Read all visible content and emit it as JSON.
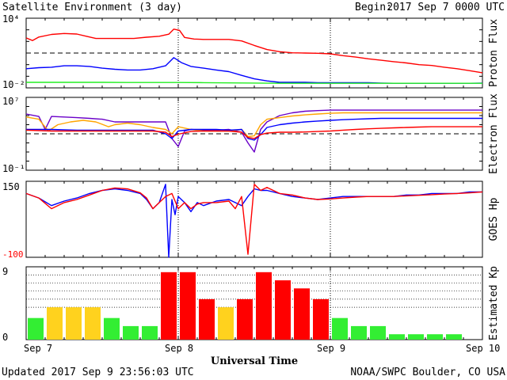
{
  "header": {
    "title": "Satellite Environment (3 day)",
    "begin_label": "Begin:",
    "begin_value": "2017 Sep 7 0000 UTC"
  },
  "footer": {
    "updated": "Updated 2017 Sep  9 23:56:03 UTC",
    "credit": "NOAA/SWPC Boulder, CO USA"
  },
  "colors": {
    "red": "#ff0000",
    "blue": "#0000ff",
    "green": "#22ee22",
    "orange": "#ffa500",
    "purple": "#6a00c8",
    "kp_green": "#33ee33",
    "kp_yellow": "#ffd21e",
    "kp_red": "#ff0000"
  },
  "chart_data": [
    {
      "type": "line",
      "ylabel": "Proton Flux",
      "ytick_labels": [
        "10⁴",
        "10⁻²"
      ],
      "yscale": "log",
      "ylim": [
        0.01,
        10000
      ],
      "threshold": 10,
      "xlim": [
        0,
        72
      ],
      "series": [
        {
          "color": "red",
          "x": [
            0,
            1,
            2,
            4,
            6,
            8,
            9.5,
            11,
            13,
            15,
            17,
            19,
            21,
            22.5,
            23.3,
            24.2,
            25,
            26.5,
            28,
            30,
            32,
            34,
            36,
            38,
            40,
            42,
            44,
            46,
            48,
            50,
            52,
            54,
            56,
            58,
            60,
            62,
            64,
            66,
            68,
            70,
            72
          ],
          "y": [
            200,
            120,
            240,
            400,
            480,
            430,
            280,
            180,
            180,
            180,
            180,
            230,
            280,
            420,
            1150,
            900,
            220,
            160,
            150,
            150,
            150,
            110,
            45,
            20,
            13,
            10.5,
            10,
            9.5,
            8.5,
            6,
            4.5,
            3.2,
            2.4,
            1.8,
            1.4,
            1,
            0.85,
            0.6,
            0.45,
            0.3,
            0.2
          ]
        },
        {
          "color": "blue",
          "x": [
            0,
            2,
            4,
            6,
            8,
            10,
            12,
            14,
            16,
            18,
            20,
            22,
            23.3,
            24.5,
            26,
            28,
            30,
            32,
            34,
            36,
            38,
            40,
            42,
            44,
            46,
            48,
            50,
            52,
            54,
            56,
            58,
            60,
            62,
            64,
            66,
            68,
            70,
            72
          ],
          "y": [
            0.45,
            0.55,
            0.6,
            0.8,
            0.8,
            0.7,
            0.5,
            0.4,
            0.35,
            0.35,
            0.45,
            0.8,
            4,
            1.5,
            0.7,
            0.5,
            0.35,
            0.25,
            0.12,
            0.06,
            0.04,
            0.03,
            0.03,
            0.03,
            0.028,
            0.028,
            0.028,
            0.028,
            0.028,
            0.026,
            0.025,
            0.025,
            0.025,
            0.025,
            0.025,
            0.025,
            0.025,
            0.026
          ]
        },
        {
          "color": "green",
          "x": [
            0,
            4,
            8,
            12,
            16,
            20,
            24,
            28,
            32,
            36,
            40,
            44,
            48,
            52,
            56,
            60,
            64,
            68,
            72
          ],
          "y": [
            0.03,
            0.03,
            0.03,
            0.03,
            0.029,
            0.029,
            0.029,
            0.028,
            0.027,
            0.026,
            0.025,
            0.025,
            0.025,
            0.025,
            0.025,
            0.025,
            0.025,
            0.025,
            0.025
          ]
        }
      ]
    },
    {
      "type": "line",
      "ylabel": "Electron Flux",
      "ytick_labels": [
        "10⁷",
        "10⁻¹"
      ],
      "yscale": "log",
      "ylim": [
        0.1,
        10000000
      ],
      "threshold": 1000,
      "xlim": [
        0,
        72
      ],
      "series": [
        {
          "color": "purple",
          "x": [
            0,
            2,
            3,
            4,
            6,
            8,
            10,
            12,
            14,
            16,
            18,
            20,
            22,
            23,
            24,
            25,
            26,
            28,
            30,
            32,
            34,
            35,
            36,
            37,
            38,
            40,
            42,
            44,
            46,
            48,
            50,
            52,
            54,
            56,
            58,
            60,
            62,
            64,
            66,
            68,
            70,
            72
          ],
          "y": [
            150000,
            80000,
            3000,
            80000,
            70000,
            60000,
            50000,
            40000,
            20000,
            20000,
            20000,
            20000,
            20000,
            300,
            40,
            2000,
            3000,
            2500,
            2500,
            3000,
            1500,
            100,
            10,
            3000,
            20000,
            100000,
            200000,
            300000,
            350000,
            400000,
            400000,
            400000,
            400000,
            400000,
            400000,
            400000,
            400000,
            400000,
            400000,
            400000,
            400000,
            400000
          ]
        },
        {
          "color": "orange",
          "x": [
            0,
            2,
            3.5,
            5,
            7,
            9,
            11,
            13,
            14,
            16,
            18,
            20,
            22,
            23,
            24,
            26,
            28,
            30,
            32,
            34,
            35,
            36,
            37,
            38,
            40,
            42,
            44,
            46,
            48,
            50,
            52,
            54,
            56,
            58,
            60,
            62,
            64,
            66,
            68,
            70,
            72
          ],
          "y": [
            70000,
            40000,
            2000,
            10000,
            20000,
            30000,
            20000,
            6000,
            10000,
            15000,
            10000,
            5000,
            3000,
            1000,
            6000,
            3000,
            2000,
            2000,
            2000,
            3000,
            500,
            600,
            10000,
            40000,
            60000,
            90000,
            120000,
            150000,
            180000,
            200000,
            200000,
            200000,
            200000,
            200000,
            200000,
            200000,
            200000,
            200000,
            200000,
            200000,
            200000
          ]
        },
        {
          "color": "blue",
          "x": [
            0,
            4,
            8,
            12,
            16,
            20,
            22,
            23,
            24,
            26,
            28,
            30,
            32,
            34,
            35,
            36,
            37,
            38,
            40,
            42,
            44,
            46,
            48,
            50,
            52,
            54,
            56,
            58,
            60,
            62,
            64,
            66,
            68,
            70,
            72
          ],
          "y": [
            3000,
            3000,
            2500,
            2500,
            2500,
            2500,
            1000,
            300,
            2000,
            3000,
            3000,
            3000,
            2500,
            3000,
            300,
            200,
            800,
            5000,
            10000,
            15000,
            20000,
            25000,
            30000,
            35000,
            40000,
            45000,
            50000,
            50000,
            50000,
            50000,
            50000,
            50000,
            50000,
            50000,
            50000
          ]
        },
        {
          "color": "red",
          "x": [
            0,
            4,
            8,
            12,
            16,
            20,
            22,
            23,
            24,
            26,
            28,
            30,
            32,
            34,
            35,
            36,
            37,
            38,
            40,
            42,
            44,
            46,
            48,
            50,
            52,
            54,
            56,
            58,
            60,
            62,
            64,
            66,
            68,
            70,
            72
          ],
          "y": [
            2500,
            2000,
            2000,
            2000,
            2000,
            2000,
            1500,
            500,
            900,
            1800,
            2000,
            2000,
            2000,
            1500,
            400,
            300,
            800,
            1200,
            1500,
            1500,
            1600,
            1800,
            2000,
            2500,
            3000,
            3500,
            4000,
            4500,
            5000,
            5500,
            6000,
            6000,
            6000,
            6000,
            6000
          ]
        }
      ]
    },
    {
      "type": "line",
      "ylabel": "GOES Hp",
      "ytick_labels": [
        "150",
        "-100"
      ],
      "ylim": [
        -100,
        150
      ],
      "xlim": [
        0,
        72
      ],
      "series": [
        {
          "color": "blue",
          "x": [
            0,
            2,
            4,
            6,
            8,
            10,
            12,
            14,
            16,
            18,
            19,
            20,
            21,
            22,
            22.5,
            23,
            23.5,
            24,
            25,
            26,
            27,
            28,
            30,
            32,
            33,
            34,
            35,
            36,
            37,
            38,
            40,
            42,
            44,
            46,
            48,
            50,
            52,
            54,
            56,
            58,
            60,
            62,
            64,
            66,
            68,
            70,
            72
          ],
          "y": [
            110,
            95,
            70,
            85,
            95,
            110,
            120,
            125,
            120,
            110,
            90,
            60,
            80,
            140,
            -100,
            90,
            40,
            100,
            80,
            50,
            80,
            70,
            85,
            90,
            80,
            70,
            100,
            125,
            120,
            120,
            110,
            100,
            95,
            90,
            95,
            100,
            100,
            100,
            100,
            100,
            105,
            105,
            110,
            110,
            110,
            115,
            115
          ]
        },
        {
          "color": "red",
          "x": [
            0,
            2,
            4,
            6,
            8,
            10,
            12,
            14,
            16,
            18,
            19,
            20,
            21,
            22,
            23,
            24,
            25,
            26,
            27,
            28,
            30,
            32,
            33,
            34,
            35,
            36,
            37,
            38,
            40,
            42,
            44,
            46,
            48,
            50,
            52,
            54,
            56,
            58,
            60,
            62,
            64,
            66,
            68,
            70,
            72
          ],
          "y": [
            110,
            95,
            60,
            80,
            90,
            105,
            120,
            128,
            125,
            112,
            95,
            60,
            80,
            100,
            110,
            60,
            80,
            60,
            75,
            80,
            80,
            85,
            60,
            100,
            -90,
            140,
            120,
            130,
            110,
            105,
            95,
            90,
            92,
            95,
            98,
            100,
            100,
            100,
            102,
            104,
            106,
            108,
            110,
            112,
            115
          ]
        }
      ]
    },
    {
      "type": "bar",
      "ylabel": "Estimated Kp",
      "ytick_labels": [
        "9",
        "0"
      ],
      "ylim": [
        0,
        9
      ],
      "hgrid": [
        4,
        5,
        6,
        7,
        8
      ],
      "values": [
        2.67,
        4,
        4,
        4,
        2.67,
        1.67,
        1.67,
        8.33,
        8.33,
        5,
        4,
        5,
        8.33,
        7.33,
        6.33,
        5,
        2.67,
        1.67,
        1.67,
        0.67,
        0.67,
        0.67,
        0.67,
        0
      ],
      "bar_colors": [
        "kp_green",
        "kp_yellow",
        "kp_yellow",
        "kp_yellow",
        "kp_green",
        "kp_green",
        "kp_green",
        "kp_red",
        "kp_red",
        "kp_red",
        "kp_yellow",
        "kp_red",
        "kp_red",
        "kp_red",
        "kp_red",
        "kp_red",
        "kp_green",
        "kp_green",
        "kp_green",
        "kp_green",
        "kp_green",
        "kp_green",
        "kp_green",
        "kp_green"
      ],
      "x_tick_labels": [
        "Sep 7",
        "Sep 8",
        "Sep 9",
        "Sep 10"
      ],
      "xlabel": "Universal Time",
      "xlim": [
        0,
        72
      ]
    }
  ]
}
